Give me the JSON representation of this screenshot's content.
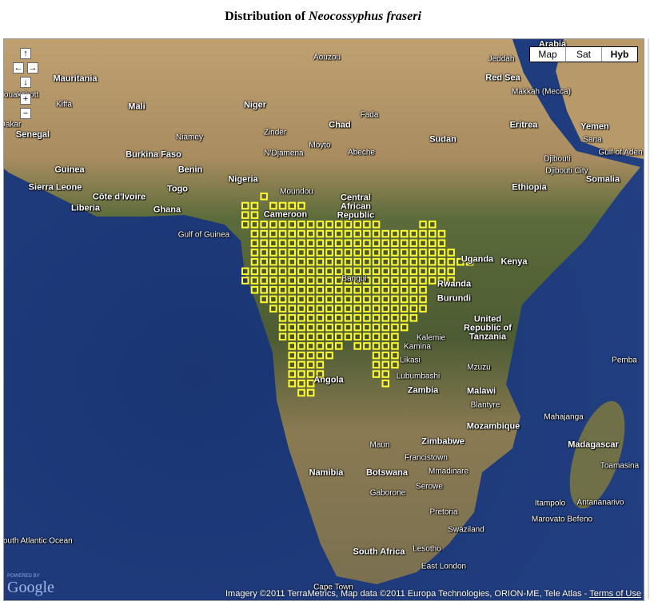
{
  "title": {
    "prefix": "Distribution of ",
    "species": "Neocossyphus fraseri"
  },
  "map_controls": {
    "pan_up": "↑",
    "pan_left": "←",
    "pan_right": "→",
    "pan_down": "↓",
    "zoom_in": "+",
    "zoom_out": "−"
  },
  "map_types": [
    {
      "label": "Map",
      "selected": false
    },
    {
      "label": "Sat",
      "selected": false
    },
    {
      "label": "Hyb",
      "selected": true
    }
  ],
  "attribution": {
    "text": "Imagery ©2011 TerraMetrics, Map data ©2011 Europa Technologies, ORION-ME, Tele Atlas - ",
    "terms_link": "Terms of Use"
  },
  "logo": {
    "powered_by": "POWERED BY",
    "brand": "Google"
  },
  "place_labels": [
    "Mauritania",
    "Mali",
    "Niger",
    "Chad",
    "Sudan",
    "Senegal",
    "Burkina Faso",
    "Benin",
    "Nigeria",
    "Guinea",
    "Sierra Leone",
    "Côte d'Ivoire",
    "Ghana",
    "Togo",
    "Liberia",
    "Cameroon",
    "Central African Republic",
    "Gulf of Guinea",
    "Ethiopia",
    "Somalia",
    "Djibouti",
    "Eritrea",
    "Yemen",
    "Red Sea",
    "Gulf of Aden",
    "Kenya",
    "Uganda",
    "Rwanda",
    "Burundi",
    "United Republic of Tanzania",
    "Angola",
    "Zambia",
    "Malawi",
    "Mozambique",
    "Zimbabwe",
    "Namibia",
    "Botswana",
    "Madagascar",
    "South Africa",
    "Lesotho",
    "Swaziland",
    "South Atlantic Ocean",
    "Arabia",
    "Kalemie",
    "Lubumbashi",
    "Likasi",
    "Kamina",
    "Moundou",
    "N'Djamena",
    "Abeche",
    "Aouzou",
    "Fada",
    "Makkah (Mecca)",
    "Jeddah",
    "Bangui",
    "Cape Town",
    "East London",
    "Maun",
    "Gaborone",
    "Pretoria",
    "Serowe",
    "Mzuzu",
    "Blantyre",
    "Antananarivo",
    "Mahajanga",
    "Toamasina",
    "Kiffa",
    "Dakar",
    "Nouakchott",
    "Zinder",
    "Niamey",
    "Moyto",
    "Djibouti City",
    "Sana",
    "Pemba",
    "Francistown",
    "Mmadinare",
    "Marovato Befeno",
    "Itampolo"
  ],
  "occurrence_overlay": {
    "color": "#ffff33",
    "cell_size_degrees": 1,
    "rows": [
      {
        "lat_top": 7,
        "lon_ranges": [
          [
            10,
            10
          ]
        ]
      },
      {
        "lat_top": 6,
        "lon_ranges": [
          [
            8,
            9
          ],
          [
            11,
            14
          ]
        ]
      },
      {
        "lat_top": 5,
        "lon_ranges": [
          [
            8,
            9
          ]
        ]
      },
      {
        "lat_top": 4,
        "lon_ranges": [
          [
            8,
            22
          ],
          [
            27,
            28
          ]
        ]
      },
      {
        "lat_top": 3,
        "lon_ranges": [
          [
            9,
            29
          ]
        ]
      },
      {
        "lat_top": 2,
        "lon_ranges": [
          [
            9,
            29
          ]
        ]
      },
      {
        "lat_top": 1,
        "lon_ranges": [
          [
            9,
            30
          ]
        ]
      },
      {
        "lat_top": 0,
        "lon_ranges": [
          [
            9,
            32
          ]
        ]
      },
      {
        "lat_top": -1,
        "lon_ranges": [
          [
            8,
            30
          ]
        ]
      },
      {
        "lat_top": -2,
        "lon_ranges": [
          [
            8,
            30
          ]
        ]
      },
      {
        "lat_top": -3,
        "lon_ranges": [
          [
            9,
            27
          ]
        ]
      },
      {
        "lat_top": -4,
        "lon_ranges": [
          [
            10,
            27
          ]
        ]
      },
      {
        "lat_top": -5,
        "lon_ranges": [
          [
            11,
            27
          ]
        ]
      },
      {
        "lat_top": -6,
        "lon_ranges": [
          [
            12,
            26
          ]
        ]
      },
      {
        "lat_top": -7,
        "lon_ranges": [
          [
            12,
            25
          ]
        ]
      },
      {
        "lat_top": -8,
        "lon_ranges": [
          [
            12,
            24
          ]
        ]
      },
      {
        "lat_top": -9,
        "lon_ranges": [
          [
            13,
            18
          ],
          [
            20,
            24
          ]
        ]
      },
      {
        "lat_top": -10,
        "lon_ranges": [
          [
            13,
            17
          ],
          [
            22,
            24
          ]
        ]
      },
      {
        "lat_top": -11,
        "lon_ranges": [
          [
            13,
            16
          ],
          [
            22,
            24
          ]
        ]
      },
      {
        "lat_top": -12,
        "lon_ranges": [
          [
            13,
            16
          ],
          [
            22,
            23
          ]
        ]
      },
      {
        "lat_top": -13,
        "lon_ranges": [
          [
            13,
            15
          ],
          [
            23,
            23
          ]
        ]
      },
      {
        "lat_top": -14,
        "lon_ranges": [
          [
            14,
            15
          ]
        ]
      }
    ]
  },
  "colors": {
    "ocean": "#1d3a78",
    "land_desert": "#b79a6c",
    "land_forest": "#4f5e34",
    "overlay": "#ffff33"
  }
}
